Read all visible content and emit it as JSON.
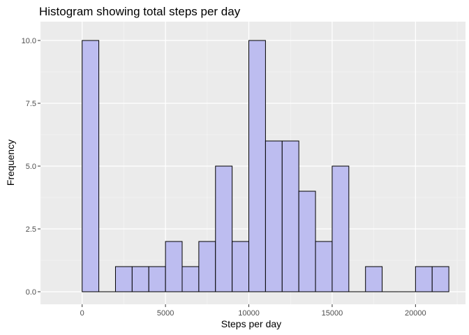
{
  "chart_data": {
    "type": "bar",
    "title": "Histogram showing total steps per day",
    "xlabel": "Steps per day",
    "ylabel": "Frequency",
    "bin_width": 1000,
    "bins": [
      {
        "x0": 0,
        "x1": 1000,
        "count": 10
      },
      {
        "x0": 1000,
        "x1": 2000,
        "count": 0
      },
      {
        "x0": 2000,
        "x1": 3000,
        "count": 1
      },
      {
        "x0": 3000,
        "x1": 4000,
        "count": 1
      },
      {
        "x0": 4000,
        "x1": 5000,
        "count": 1
      },
      {
        "x0": 5000,
        "x1": 6000,
        "count": 2
      },
      {
        "x0": 6000,
        "x1": 7000,
        "count": 1
      },
      {
        "x0": 7000,
        "x1": 8000,
        "count": 2
      },
      {
        "x0": 8000,
        "x1": 9000,
        "count": 5
      },
      {
        "x0": 9000,
        "x1": 10000,
        "count": 2
      },
      {
        "x0": 10000,
        "x1": 11000,
        "count": 10
      },
      {
        "x0": 11000,
        "x1": 12000,
        "count": 6
      },
      {
        "x0": 12000,
        "x1": 13000,
        "count": 6
      },
      {
        "x0": 13000,
        "x1": 14000,
        "count": 4
      },
      {
        "x0": 14000,
        "x1": 15000,
        "count": 2
      },
      {
        "x0": 15000,
        "x1": 16000,
        "count": 5
      },
      {
        "x0": 16000,
        "x1": 17000,
        "count": 0
      },
      {
        "x0": 17000,
        "x1": 18000,
        "count": 1
      },
      {
        "x0": 18000,
        "x1": 19000,
        "count": 0
      },
      {
        "x0": 19000,
        "x1": 20000,
        "count": 0
      },
      {
        "x0": 20000,
        "x1": 21000,
        "count": 1
      },
      {
        "x0": 21000,
        "x1": 22000,
        "count": 1
      }
    ],
    "xlim": [
      -2500,
      23000
    ],
    "ylim": [
      -0.5,
      10.75
    ],
    "x_ticks": [
      0,
      5000,
      10000,
      15000,
      20000
    ],
    "x_tick_labels": [
      "0",
      "5000",
      "10000",
      "15000",
      "20000"
    ],
    "y_ticks": [
      0,
      2.5,
      5,
      7.5,
      10
    ],
    "y_tick_labels": [
      "0.0",
      "2.5",
      "5.0",
      "7.5",
      "10.0"
    ],
    "grid": true,
    "legend": "none",
    "colors": {
      "bar_fill": "#bdbdf0",
      "bar_stroke": "#000000",
      "panel_bg": "#ebebeb",
      "grid_major": "#ffffff",
      "grid_minor": "#f5f5f5",
      "tick": "#333333",
      "tick_label": "#4d4d4d"
    }
  }
}
